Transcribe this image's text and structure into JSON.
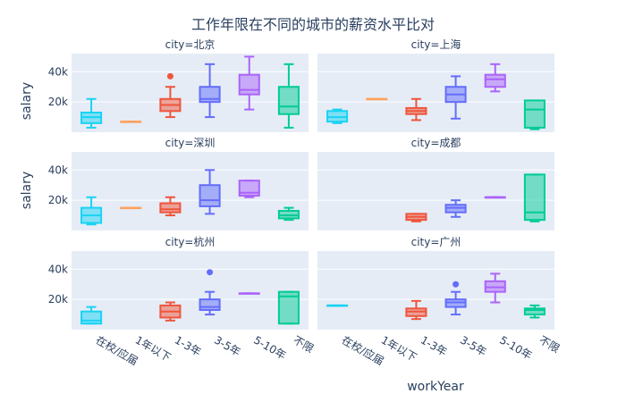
{
  "chart_data": {
    "type": "box",
    "title": "工作年限在不同的城市的薪资水平比对",
    "xlabel": "workYear",
    "ylabel": "salary",
    "categories": [
      "在校/应届",
      "1年以下",
      "1-3年",
      "3-5年",
      "5-10年",
      "不限"
    ],
    "category_colors": [
      "#19d3f3",
      "#ffa15a",
      "#ef553b",
      "#636efa",
      "#ab63fa",
      "#00cc96"
    ],
    "y_ticks": [
      20000,
      40000
    ],
    "y_tick_labels": [
      "20k",
      "40k"
    ],
    "ylim": [
      0,
      52000
    ],
    "facets": [
      {
        "label": "city=北京",
        "boxes": [
          {
            "category": "在校/应届",
            "min": 3000,
            "q1": 6000,
            "median": 10000,
            "q3": 13000,
            "max": 22000
          },
          {
            "category": "1年以下",
            "min": 7000,
            "q1": 7000,
            "median": 7000,
            "q3": 7000,
            "max": 7000
          },
          {
            "category": "1-3年",
            "min": 10000,
            "q1": 14000,
            "median": 18000,
            "q3": 22000,
            "max": 30000,
            "outliers": [
              37000
            ]
          },
          {
            "category": "3-5年",
            "min": 10000,
            "q1": 20000,
            "median": 22000,
            "q3": 30000,
            "max": 45000
          },
          {
            "category": "5-10年",
            "min": 15000,
            "q1": 25000,
            "median": 28000,
            "q3": 38000,
            "max": 50000
          },
          {
            "category": "不限",
            "min": 3000,
            "q1": 12000,
            "median": 17000,
            "q3": 30000,
            "max": 45000
          }
        ]
      },
      {
        "label": "city=上海",
        "boxes": [
          {
            "category": "在校/应届",
            "min": 6000,
            "q1": 7000,
            "median": 10000,
            "q3": 14000,
            "max": 15000
          },
          {
            "category": "1年以下",
            "min": 22000,
            "q1": 22000,
            "median": 22000,
            "q3": 22000,
            "max": 22000
          },
          {
            "category": "1-3年",
            "min": 8000,
            "q1": 12000,
            "median": 14000,
            "q3": 16000,
            "max": 22000
          },
          {
            "category": "3-5年",
            "min": 9000,
            "q1": 20000,
            "median": 25000,
            "q3": 30000,
            "max": 37000
          },
          {
            "category": "5-10年",
            "min": 27000,
            "q1": 30000,
            "median": 35000,
            "q3": 38000,
            "max": 45000
          },
          {
            "category": "不限",
            "min": 2000,
            "q1": 3000,
            "median": 15000,
            "q3": 21000,
            "max": 21000
          }
        ]
      },
      {
        "label": "city=深圳",
        "boxes": [
          {
            "category": "在校/应届",
            "min": 4000,
            "q1": 5000,
            "median": 10000,
            "q3": 15000,
            "max": 22000
          },
          {
            "category": "1年以下",
            "min": 15000,
            "q1": 15000,
            "median": 15000,
            "q3": 15000,
            "max": 15000
          },
          {
            "category": "1-3年",
            "min": 10000,
            "q1": 12000,
            "median": 14000,
            "q3": 18000,
            "max": 22000
          },
          {
            "category": "3-5年",
            "min": 11000,
            "q1": 16000,
            "median": 20000,
            "q3": 30000,
            "max": 40000
          },
          {
            "category": "5-10年",
            "min": 22000,
            "q1": 23000,
            "median": 25000,
            "q3": 33000,
            "max": 33000
          },
          {
            "category": "不限",
            "min": 7000,
            "q1": 8000,
            "median": 10000,
            "q3": 13000,
            "max": 15000
          }
        ]
      },
      {
        "label": "city=成都",
        "boxes": [
          {
            "category": "1-3年",
            "min": 6000,
            "q1": 7000,
            "median": 9000,
            "q3": 11000,
            "max": 11000
          },
          {
            "category": "3-5年",
            "min": 9000,
            "q1": 12000,
            "median": 15000,
            "q3": 17000,
            "max": 20000
          },
          {
            "category": "5-10年",
            "min": 22000,
            "q1": 22000,
            "median": 22000,
            "q3": 22000,
            "max": 22000
          },
          {
            "category": "不限",
            "min": 6000,
            "q1": 7000,
            "median": 12000,
            "q3": 37000,
            "max": 37000
          }
        ]
      },
      {
        "label": "city=杭州",
        "boxes": [
          {
            "category": "在校/应届",
            "min": 4000,
            "q1": 4000,
            "median": 6000,
            "q3": 12000,
            "max": 15000
          },
          {
            "category": "1-3年",
            "min": 6000,
            "q1": 8000,
            "median": 12000,
            "q3": 16000,
            "max": 18000
          },
          {
            "category": "3-5年",
            "min": 10000,
            "q1": 13000,
            "median": 15000,
            "q3": 20000,
            "max": 25000,
            "outliers": [
              38000
            ]
          },
          {
            "category": "5-10年",
            "min": 24000,
            "q1": 24000,
            "median": 24000,
            "q3": 24000,
            "max": 24000
          },
          {
            "category": "不限",
            "min": 4000,
            "q1": 4000,
            "median": 22000,
            "q3": 25000,
            "max": 25000
          }
        ]
      },
      {
        "label": "city=广州",
        "boxes": [
          {
            "category": "在校/应届",
            "min": 16000,
            "q1": 16000,
            "median": 16000,
            "q3": 16000,
            "max": 16000
          },
          {
            "category": "1-3年",
            "min": 7000,
            "q1": 9000,
            "median": 12000,
            "q3": 14000,
            "max": 19000
          },
          {
            "category": "3-5年",
            "min": 10000,
            "q1": 15000,
            "median": 18000,
            "q3": 20000,
            "max": 25000,
            "outliers": [
              30000
            ]
          },
          {
            "category": "5-10年",
            "min": 18000,
            "q1": 25000,
            "median": 28000,
            "q3": 32000,
            "max": 37000
          },
          {
            "category": "不限",
            "min": 8000,
            "q1": 10000,
            "median": 13000,
            "q3": 14000,
            "max": 16000
          }
        ]
      }
    ]
  }
}
